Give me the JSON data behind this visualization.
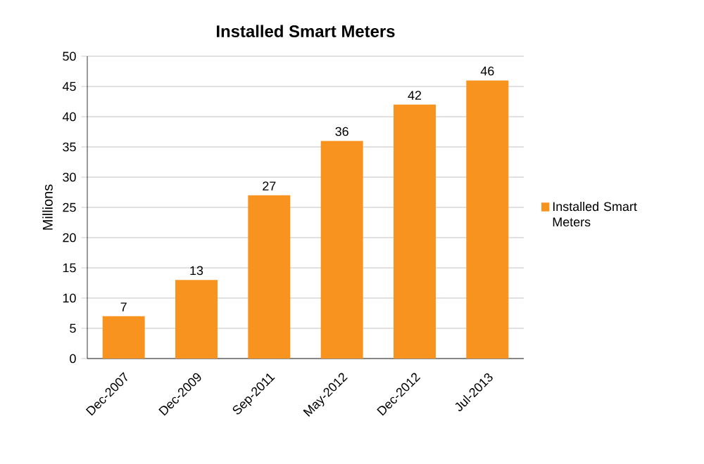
{
  "chart_data": {
    "type": "bar",
    "title": "Installed Smart Meters",
    "ylabel": "Millions",
    "categories": [
      "Dec-2007",
      "Dec-2009",
      "Sep-2011",
      "May-2012",
      "Dec-2012",
      "Jul-2013"
    ],
    "series": [
      {
        "name": "Installed Smart Meters",
        "color": "#f7931e",
        "values": [
          7,
          13,
          27,
          36,
          42,
          46
        ]
      }
    ],
    "ylim": [
      0,
      50
    ],
    "yticks": [
      0,
      5,
      10,
      15,
      20,
      25,
      30,
      35,
      40,
      45,
      50
    ],
    "grid": "y",
    "legend": "right",
    "data_labels": true
  }
}
